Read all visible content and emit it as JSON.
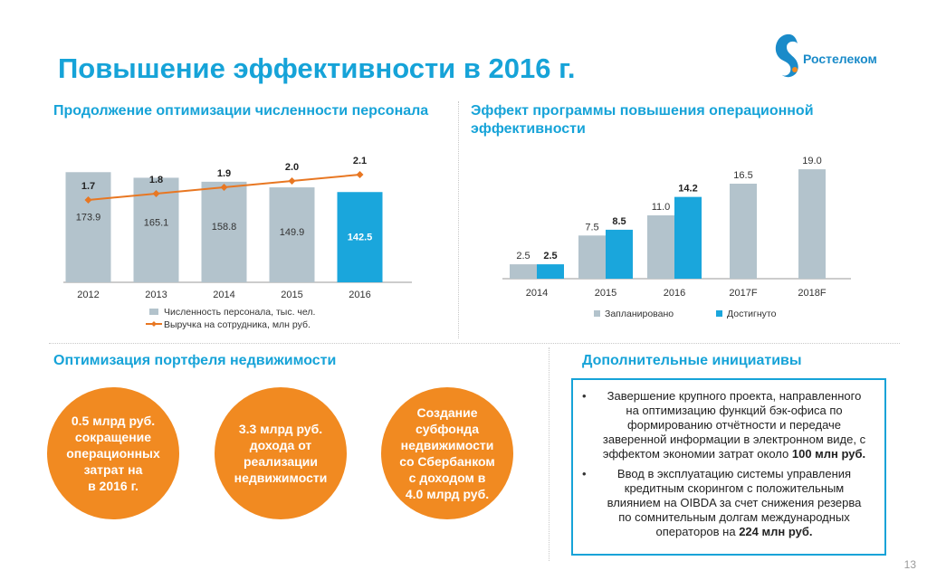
{
  "title": "Повышение эффективности в 2016 г.",
  "logo": {
    "text": "Ростелеком",
    "color": "#1a8bc9"
  },
  "headcount_section": {
    "title": "Продолжение оптимизации численности персонала"
  },
  "opex_section": {
    "title_line1": "Эффект программы повышения операционной",
    "title_line2": "эффективности"
  },
  "realestate_section": {
    "title": "Оптимизация портфеля недвижимости",
    "circles": [
      {
        "lines": [
          "0.5 млрд руб.",
          "сокращение",
          "операционных",
          "затрат на",
          "в 2016 г."
        ]
      },
      {
        "lines": [
          "3.3 млрд руб.",
          "дохода от",
          "реализации",
          "недвижимости"
        ]
      },
      {
        "lines": [
          "Создание",
          "субфонда",
          "недвижимости",
          "со Сбербанком",
          "с доходом в",
          "4.0 млрд руб."
        ]
      }
    ]
  },
  "initiatives_section": {
    "title": "Дополнительные инициативы",
    "items": [
      {
        "lines": [
          "Завершение крупного проекта, направленного",
          "на оптимизацию функций бэк-офиса по",
          "формированию отчётности и передаче",
          "заверенной информации в электронном виде, с"
        ],
        "tail_prefix": "эффектом экономии затрат около ",
        "tail_bold": "100 млн руб."
      },
      {
        "lines": [
          "Ввод в эксплуатацию системы управления",
          "кредитным скорингом с положительным",
          "влиянием на OIBDA за счет снижения резерва",
          "по сомнительным долгам международных"
        ],
        "tail_prefix": "операторов на ",
        "tail_bold": "224 млн руб."
      }
    ]
  },
  "page_number": "13",
  "colors": {
    "accent_blue": "#16a3d8",
    "bar_gray": "#b3c3cc",
    "bar_blue": "#1aa6dc",
    "line_orange": "#e87722",
    "circle_orange": "#f18a21"
  },
  "chart_data": [
    {
      "type": "bar",
      "categories": [
        "2012",
        "2013",
        "2014",
        "2015",
        "2016"
      ],
      "series": [
        {
          "name": "Численность персонала, тыс. чел.",
          "type": "bar",
          "values": [
            173.9,
            165.1,
            158.8,
            149.9,
            142.5
          ],
          "labels": [
            "173.9",
            "165.1",
            "158.8",
            "149.9",
            "142.5"
          ]
        },
        {
          "name": "Выручка на сотрудника, млн руб.",
          "type": "line",
          "values": [
            1.7,
            1.8,
            1.9,
            2.0,
            2.1
          ],
          "labels": [
            "1.7",
            "1.8",
            "1.9",
            "2.0",
            "2.1"
          ]
        }
      ],
      "highlight_last_bar": true,
      "ylim": [
        0,
        200
      ],
      "line_ylim": [
        0.4,
        2.4
      ],
      "legend_position": "bottom"
    },
    {
      "type": "bar",
      "categories": [
        "2014",
        "2015",
        "2016",
        "2017F",
        "2018F"
      ],
      "series": [
        {
          "name": "Запланировано",
          "values": [
            2.5,
            7.5,
            11.0,
            16.5,
            19.0
          ],
          "labels": [
            "2.5",
            "7.5",
            "11.0",
            "16.5",
            "19.0"
          ]
        },
        {
          "name": "Достигнуто",
          "values": [
            2.5,
            8.5,
            14.2,
            null,
            null
          ],
          "labels": [
            "2.5",
            "8.5",
            "14.2",
            "",
            ""
          ]
        }
      ],
      "ylim": [
        0,
        22
      ],
      "legend_position": "bottom"
    }
  ]
}
